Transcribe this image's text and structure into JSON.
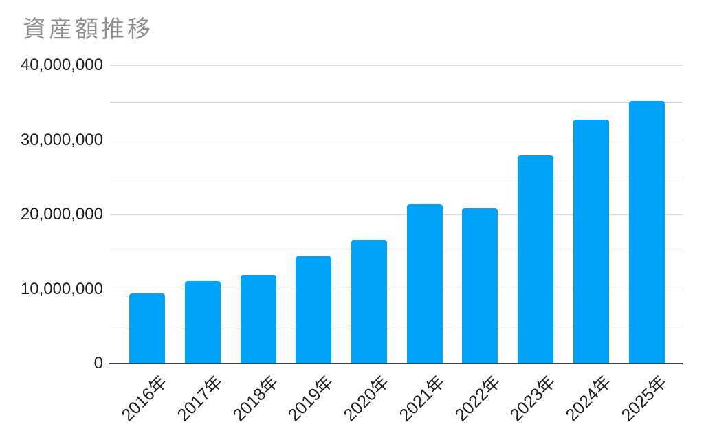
{
  "chart_data": {
    "type": "bar",
    "title": "資産額推移",
    "categories": [
      "2016年",
      "2017年",
      "2018年",
      "2019年",
      "2020年",
      "2021年",
      "2022年",
      "2023年",
      "2024年",
      "2025年"
    ],
    "values": [
      9400000,
      11100000,
      11900000,
      14400000,
      16600000,
      21400000,
      20800000,
      27900000,
      32700000,
      35200000
    ],
    "xlabel": "",
    "ylabel": "",
    "ylim": [
      0,
      40000000
    ],
    "ytick_label_step": 10000000,
    "ygrid_step": 5000000,
    "ytick_labels": [
      "0",
      "10,000,000",
      "20,000,000",
      "30,000,000",
      "40,000,000"
    ],
    "grid": true,
    "legend_position": "none",
    "colors": {
      "bar": "#00a2f7",
      "gridline": "#dcdcdc",
      "axis_line": "#424242",
      "tick_text": "#1f1f1f",
      "title_text": "#8f8f8f"
    }
  }
}
